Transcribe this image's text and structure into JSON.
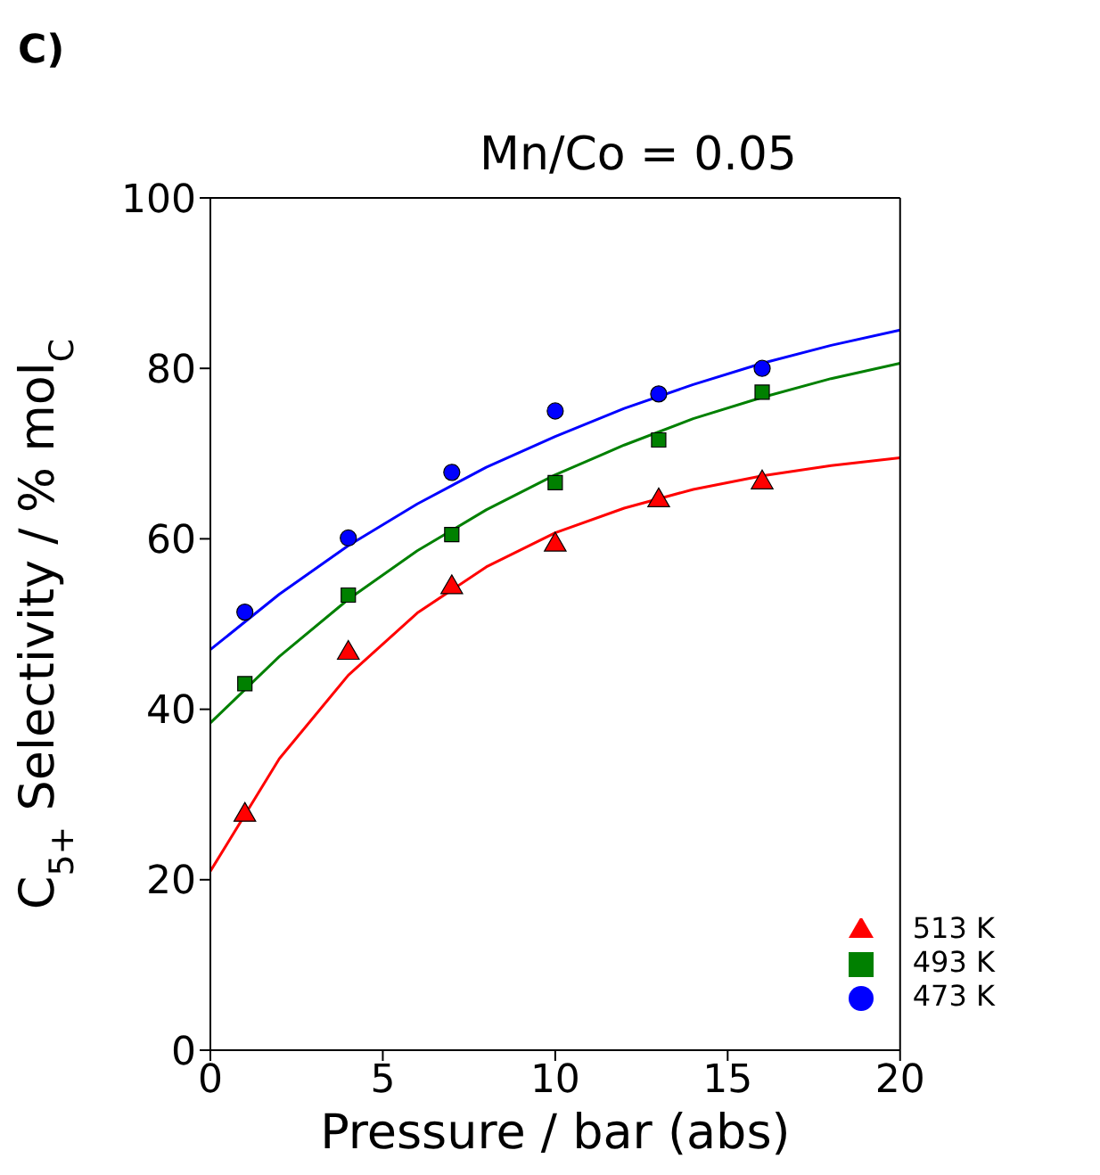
{
  "chart_data": {
    "type": "scatter",
    "title": "Mn/Co = 0.05",
    "xlabel": "Pressure  / bar (abs)",
    "ylabel": "C$_{5+}$ Selectivity / % mol$_{C}$",
    "annotations": [
      "C)"
    ],
    "xlim": [
      0,
      20
    ],
    "xticks": [
      0,
      5,
      10,
      15,
      20
    ],
    "ylim": [
      0,
      100
    ],
    "yticks": [
      0,
      20,
      40,
      60,
      80,
      100
    ],
    "legend": "bottom right",
    "grid": false,
    "series": [
      {
        "name": "513 K",
        "color": "#ff0000",
        "marker": "triangle",
        "x": [
          1,
          4,
          7,
          10,
          13,
          16
        ],
        "values": [
          27.6,
          46.6,
          54.3,
          59.3,
          64.5,
          66.6
        ]
      },
      {
        "name": "493 K",
        "color": "#008000",
        "marker": "square",
        "x": [
          1,
          4,
          7,
          10,
          13,
          16
        ],
        "values": [
          43,
          53.4,
          60.5,
          66.6,
          71.6,
          77.2
        ]
      },
      {
        "name": "473 K",
        "color": "#0000ff",
        "marker": "circle",
        "x": [
          1,
          4,
          7,
          10,
          13,
          16
        ],
        "values": [
          51.4,
          60.1,
          67.8,
          75,
          77,
          80
        ]
      },
      {
        "type": "line",
        "color": "#ff0000",
        "x": [
          0,
          2,
          4,
          6,
          8,
          10,
          12,
          14,
          16,
          18,
          20
        ],
        "values": [
          21,
          34.2,
          44,
          51.3,
          56.7,
          60.7,
          63.6,
          65.8,
          67.4,
          68.6,
          69.5
        ]
      },
      {
        "type": "line",
        "color": "#008000",
        "x": [
          0,
          2,
          4,
          6,
          8,
          10,
          12,
          14,
          16,
          18,
          20
        ],
        "values": [
          38.4,
          46.2,
          52.9,
          58.6,
          63.4,
          67.5,
          71,
          74.1,
          76.6,
          78.8,
          80.6
        ]
      },
      {
        "type": "line",
        "color": "#0000ff",
        "x": [
          0,
          2,
          4,
          6,
          8,
          10,
          12,
          14,
          16,
          18,
          20
        ],
        "values": [
          47,
          53.5,
          59.2,
          64.1,
          68.4,
          72,
          75.3,
          78.1,
          80.6,
          82.7,
          84.5
        ]
      }
    ]
  }
}
